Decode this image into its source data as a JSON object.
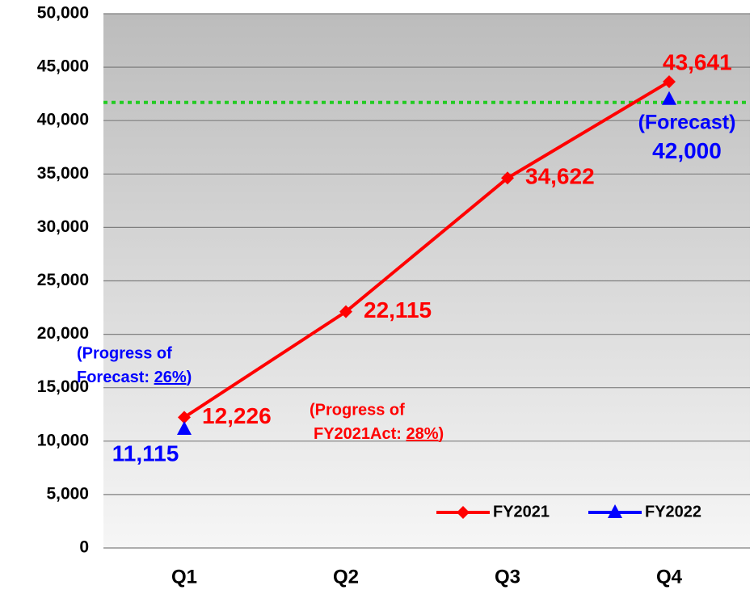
{
  "chart_data": {
    "type": "line",
    "categories": [
      "Q1",
      "Q2",
      "Q3",
      "Q4"
    ],
    "series": [
      {
        "name": "FY2021",
        "color": "#ff0000",
        "marker": "diamond",
        "values": [
          12226,
          22115,
          34622,
          43641
        ],
        "value_labels": [
          "12,226",
          "22,115",
          "34,622",
          "43,641"
        ]
      },
      {
        "name": "FY2022",
        "color": "#0000ff",
        "marker": "triangle",
        "values": [
          11115,
          null,
          null,
          42000
        ],
        "value_labels": [
          "11,115",
          null,
          null,
          "42,000"
        ]
      }
    ],
    "forecast_note": "(Forecast)",
    "forecast_line_color": "#22cc22",
    "annotations": [
      {
        "lines": [
          "(Progress of",
          "Forecast: "
        ],
        "underlined": "26%",
        "suffix": ")",
        "color": "#0000ff"
      },
      {
        "lines": [
          "(Progress of",
          "FY2021Act: "
        ],
        "underlined": "28%",
        "suffix": ")",
        "color": "#ff0000"
      }
    ],
    "ylim": [
      0,
      50000
    ],
    "yticks": [
      0,
      {
        "value": 5000,
        "label": "5,000"
      },
      {
        "value": 10000,
        "label": "10,000"
      },
      {
        "value": 15000,
        "label": "15,000"
      },
      {
        "value": 20000,
        "label": "20,000"
      },
      {
        "value": 25000,
        "label": "25,000"
      },
      {
        "value": 30000,
        "label": "30,000"
      },
      {
        "value": 35000,
        "label": "35,000"
      },
      {
        "value": 40000,
        "label": "40,000"
      },
      {
        "value": 45000,
        "label": "45,000"
      },
      {
        "value": 50000,
        "label": "50,000"
      }
    ],
    "grid": true,
    "legend": "lower right"
  }
}
